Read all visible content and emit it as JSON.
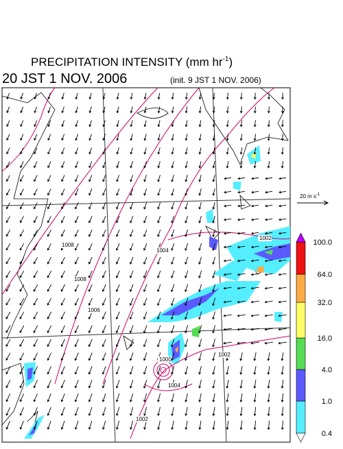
{
  "header": {
    "title": "PRECIPITATION INTENSITY (mm hr",
    "title_sup": "-1",
    "title_end": ")",
    "valid_time": "20 JST 1 NOV. 2006",
    "init_time": "(init. 9 JST 1 NOV. 2006)"
  },
  "wind_scale": {
    "label": "20 m s",
    "label_sup": "-1"
  },
  "isobars": {
    "labels": [
      "1008",
      "1008",
      "1004",
      "1006",
      "1002",
      "1002",
      "1004",
      "1000",
      "1002"
    ]
  },
  "colorbar": {
    "labels": [
      "0.4",
      "1.0",
      "4.0",
      "16.0",
      "32.0",
      "64.0",
      "100.0"
    ],
    "colors": [
      "#55eeff",
      "#5a5aff",
      "#55dd55",
      "#ffff66",
      "#ffaa44",
      "#ee1111"
    ],
    "over": "#bb00ff",
    "under": "#ffffff"
  }
}
